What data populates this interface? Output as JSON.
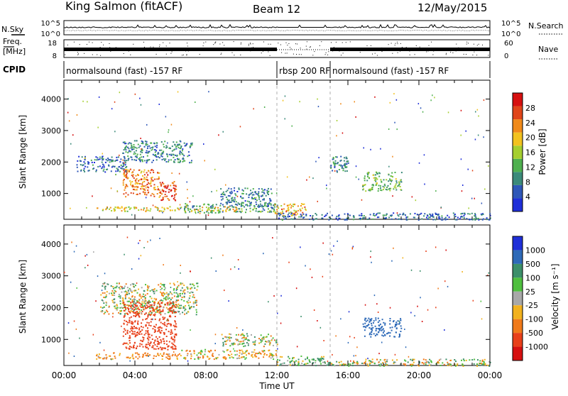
{
  "header": {
    "station": "King Salmon (fitACF)",
    "beam": "Beam 12",
    "date": "12/May/2015"
  },
  "strips": {
    "nsky_label": "N.Sky",
    "nsearch_label": "N.Search",
    "freq_label_1": "Freq.",
    "freq_label_2": "[MHz]",
    "nave_label": "Nave",
    "cpid_label": "CPID",
    "left_ticks_nsky": [
      "10^5",
      "10^0"
    ],
    "right_ticks_nsky": [
      "10^5",
      "10^0"
    ],
    "left_ticks_freq": [
      "18",
      "8"
    ],
    "right_ticks_nave": [
      "60",
      "0"
    ]
  },
  "cpid_segments": [
    {
      "label": "normalsound (fast) -157 RF",
      "start_hour": 0,
      "end_hour": 12
    },
    {
      "label": "rbsp 200 RF",
      "start_hour": 12,
      "end_hour": 15
    },
    {
      "label": "normalsound (fast) -157 RF",
      "start_hour": 15,
      "end_hour": 24
    }
  ],
  "axes": {
    "xlabel": "Time UT",
    "ylabel": "Slant Range [km]",
    "xticks": [
      "00:00",
      "04:00",
      "08:00",
      "12:00",
      "16:00",
      "20:00",
      "00:00"
    ],
    "yticks": [
      "1000",
      "2000",
      "3000",
      "4000"
    ]
  },
  "colorbars": {
    "power": {
      "label": "Power [dB]",
      "ticks": [
        "4",
        "8",
        "12",
        "16",
        "20",
        "24",
        "28"
      ],
      "colors": [
        "#1f2fd8",
        "#2e57b8",
        "#3b8a7a",
        "#4fb04f",
        "#a5cf2f",
        "#f2c21f",
        "#f08a1a",
        "#e0451a",
        "#d61010"
      ]
    },
    "velocity": {
      "label": "Velocity [m s⁻¹]",
      "ticks": [
        "1000",
        "500",
        "100",
        "25",
        "-25",
        "-100",
        "-500",
        "-1000"
      ],
      "colors": [
        "#1f2fd8",
        "#2e6ab8",
        "#3c8f6a",
        "#4fbf3f",
        "#a8a8a8",
        "#f2b21f",
        "#f07a1a",
        "#e8401a",
        "#d61010"
      ]
    }
  },
  "chart_data": [
    {
      "type": "heatmap",
      "title": "Power [dB]",
      "xlabel": "Time UT",
      "ylabel": "Slant Range [km]",
      "xlim": [
        0,
        24
      ],
      "ylim": [
        180,
        4600
      ],
      "zlim": [
        0,
        30
      ],
      "regions": [
        {
          "x": [
            3.3,
            7.2
          ],
          "y": [
            2000,
            2700
          ],
          "value": 8
        },
        {
          "x": [
            0.7,
            3.5
          ],
          "y": [
            1700,
            2200
          ],
          "value": 6
        },
        {
          "x": [
            3.3,
            5.4
          ],
          "y": [
            900,
            1800
          ],
          "value": 22
        },
        {
          "x": [
            5.4,
            6.3
          ],
          "y": [
            800,
            1400
          ],
          "value": 26
        },
        {
          "x": [
            6.5,
            12.0
          ],
          "y": [
            400,
            700
          ],
          "value": 10
        },
        {
          "x": [
            8.8,
            11.7
          ],
          "y": [
            600,
            1200
          ],
          "value": 8
        },
        {
          "x": [
            1.8,
            10.0
          ],
          "y": [
            450,
            600
          ],
          "value": 18
        },
        {
          "x": [
            11.8,
            13.6
          ],
          "y": [
            300,
            700
          ],
          "value": 20
        },
        {
          "x": [
            12.0,
            24.0
          ],
          "y": [
            180,
            400
          ],
          "value": 6
        },
        {
          "x": [
            16.8,
            19.0
          ],
          "y": [
            1100,
            1700
          ],
          "value": 12
        },
        {
          "x": [
            15.0,
            16.0
          ],
          "y": [
            1700,
            2200
          ],
          "value": 8
        }
      ]
    },
    {
      "type": "heatmap",
      "title": "Velocity [m s⁻¹]",
      "xlabel": "Time UT",
      "ylabel": "Slant Range [km]",
      "xlim": [
        0,
        24
      ],
      "ylim": [
        180,
        4600
      ],
      "zlim": [
        -1000,
        1000
      ],
      "regions": [
        {
          "x": [
            2.0,
            7.5
          ],
          "y": [
            1800,
            2800
          ],
          "value": 0
        },
        {
          "x": [
            3.3,
            6.3
          ],
          "y": [
            700,
            2200
          ],
          "value": -500
        },
        {
          "x": [
            1.8,
            6.5
          ],
          "y": [
            400,
            600
          ],
          "value": -100
        },
        {
          "x": [
            6.5,
            12.0
          ],
          "y": [
            400,
            700
          ],
          "value": -50
        },
        {
          "x": [
            8.8,
            12.0
          ],
          "y": [
            800,
            1200
          ],
          "value": 0
        },
        {
          "x": [
            12.0,
            15.0
          ],
          "y": [
            200,
            500
          ],
          "value": 60
        },
        {
          "x": [
            15.0,
            24.0
          ],
          "y": [
            180,
            400
          ],
          "value": 0
        },
        {
          "x": [
            16.8,
            19.0
          ],
          "y": [
            1100,
            1700
          ],
          "value": 400
        }
      ]
    }
  ]
}
